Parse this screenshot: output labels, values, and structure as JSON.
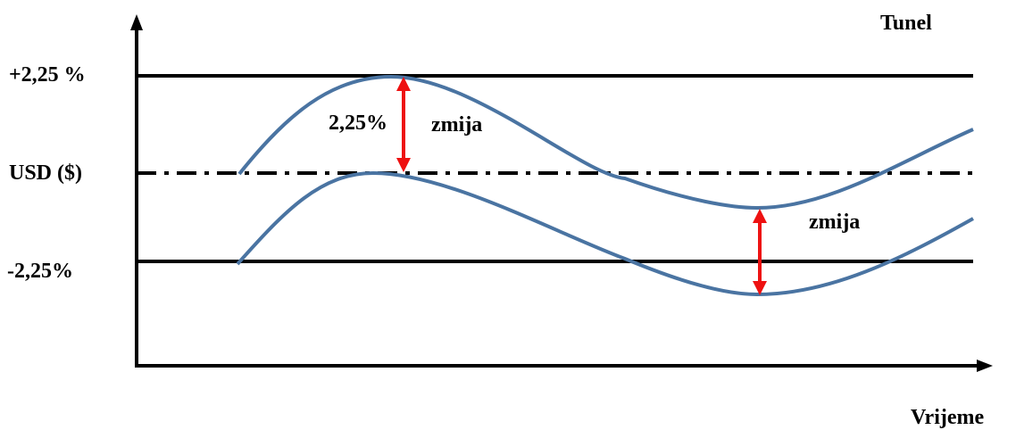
{
  "labels": {
    "tunnel": "Tunel",
    "upper_band": "+2,25 %",
    "center_line": "USD ($)",
    "lower_band": "-2,25%",
    "x_axis": "Vrijeme",
    "band_width": "2,25%",
    "snake_1": "zmija",
    "snake_2": "zmija"
  },
  "colors": {
    "curve": "#4a74a2",
    "arrow": "#ee1111",
    "lines": "#000000"
  }
}
